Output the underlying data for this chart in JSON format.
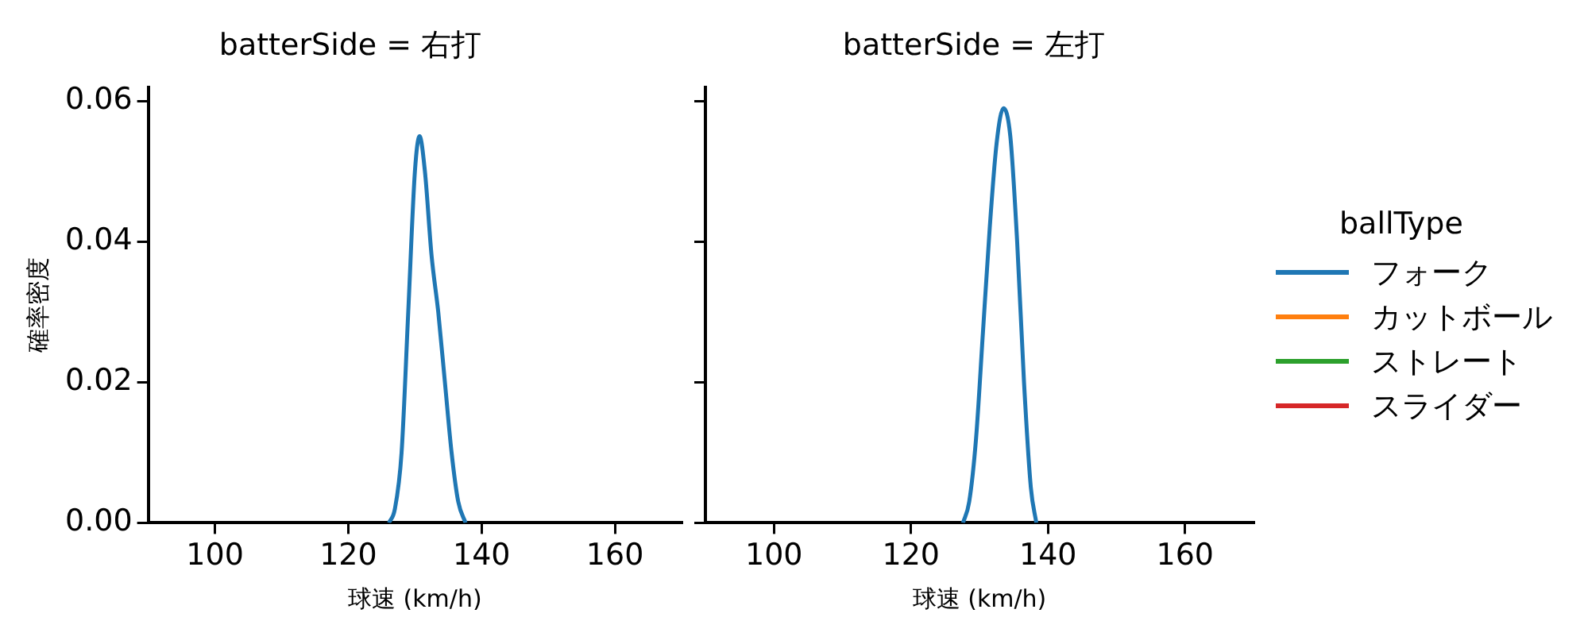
{
  "chart_data": [
    {
      "type": "line",
      "title": "batterSide = 右打",
      "xlabel": "球速 (km/h)",
      "ylabel": "確率密度",
      "xlim": [
        90,
        170
      ],
      "xticks": [
        100,
        120,
        140,
        160
      ],
      "ylim": [
        0,
        0.062
      ],
      "yticks": [
        {
          "value": 0,
          "label": "0.00"
        },
        {
          "value": 0.02,
          "label": "0.02"
        },
        {
          "value": 0.04,
          "label": "0.04"
        },
        {
          "value": 0.06,
          "label": "0.06"
        }
      ],
      "grid": false,
      "legend": false,
      "series": [
        {
          "color": "#1f77b4",
          "x": [
            126.1,
            127,
            128,
            129,
            130,
            130.7,
            131.5,
            132.5,
            133.5,
            134.5,
            135.5,
            136.5,
            137.6
          ],
          "values": [
            0,
            0.002,
            0.01,
            0.03,
            0.05,
            0.055,
            0.05,
            0.038,
            0.03,
            0.02,
            0.01,
            0.003,
            0
          ]
        }
      ]
    },
    {
      "type": "line",
      "title": "batterSide = 左打",
      "xlabel": "球速 (km/h)",
      "xlim": [
        90,
        170
      ],
      "xticks": [
        100,
        120,
        140,
        160
      ],
      "ylim": [
        0,
        0.062
      ],
      "yticks": [
        0,
        0.02,
        0.04,
        0.06
      ],
      "tick_labels": "x",
      "grid": false,
      "legend": "right",
      "legend_title": "ballType",
      "series": [
        {
          "name": "フォーク",
          "color": "#1f77b4",
          "x": [
            127.6,
            128.5,
            129.5,
            130.5,
            131.5,
            132.5,
            133.5,
            134.5,
            135.5,
            136.5,
            137.5,
            138.3
          ],
          "values": [
            0,
            0.003,
            0.012,
            0.027,
            0.042,
            0.054,
            0.059,
            0.055,
            0.04,
            0.02,
            0.005,
            0
          ]
        },
        {
          "name": "カットボール",
          "color": "#ff7f0e"
        },
        {
          "name": "ストレート",
          "color": "#2ca02c"
        },
        {
          "name": "スライダー",
          "color": "#d62728"
        }
      ]
    }
  ]
}
